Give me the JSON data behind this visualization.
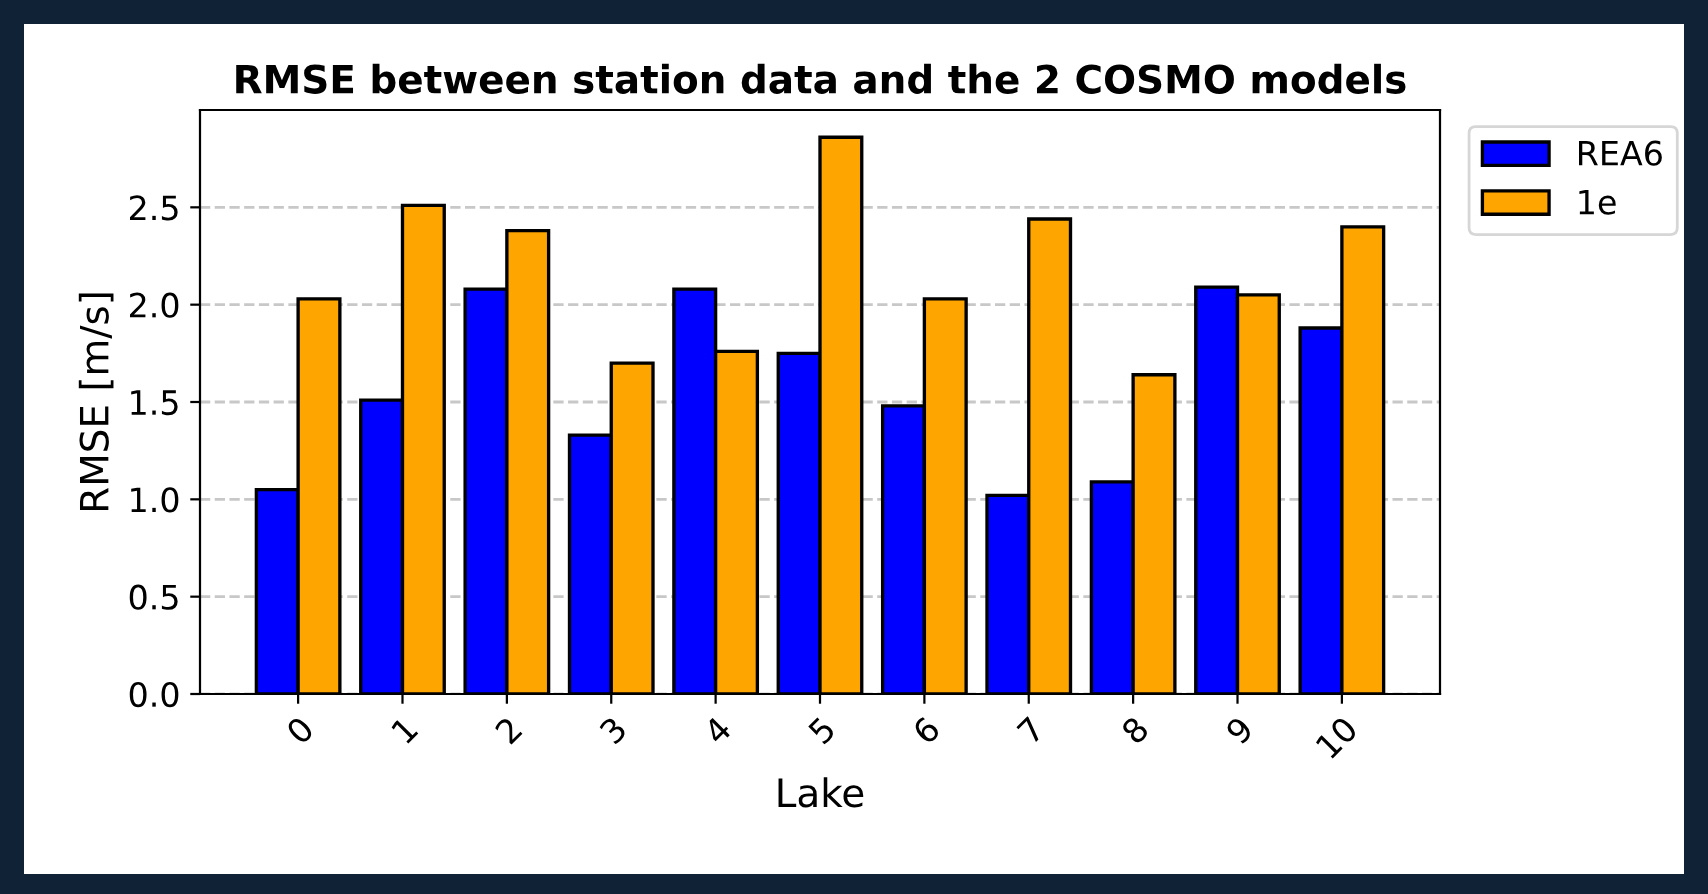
{
  "chart_data": {
    "type": "bar",
    "title": "RMSE between station data and the 2 COSMO models",
    "xlabel": "Lake",
    "ylabel": "RMSE [m/s]",
    "categories": [
      "0",
      "1",
      "2",
      "3",
      "4",
      "5",
      "6",
      "7",
      "8",
      "9",
      "10"
    ],
    "series": [
      {
        "name": "REA6",
        "color": "#0000ff",
        "values": [
          1.05,
          1.51,
          2.08,
          1.33,
          2.08,
          1.75,
          1.48,
          1.02,
          1.09,
          2.09,
          1.88
        ]
      },
      {
        "name": "1e",
        "color": "#ffa500",
        "values": [
          2.03,
          2.51,
          2.38,
          1.7,
          1.76,
          2.86,
          2.03,
          2.44,
          1.64,
          2.05,
          2.4
        ]
      }
    ],
    "ylim": [
      0,
      3.0
    ],
    "yticks": [
      {
        "value": 0,
        "label": "0.0"
      },
      {
        "value": 0.5,
        "label": "0.5"
      },
      {
        "value": 1,
        "label": "1.0"
      },
      {
        "value": 1.5,
        "label": "1.5"
      },
      {
        "value": 2,
        "label": "2.0"
      },
      {
        "value": 2.5,
        "label": "2.5"
      }
    ],
    "grid": "y",
    "legend": "right"
  }
}
